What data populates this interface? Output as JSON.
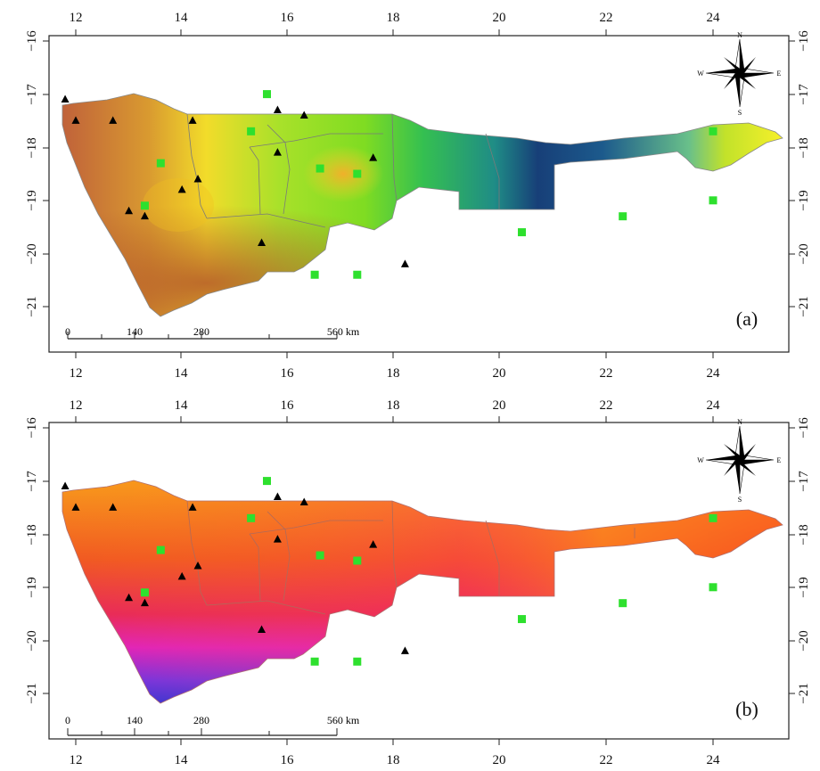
{
  "figure": {
    "panels": [
      {
        "id": "a",
        "label": "(a)",
        "x_ticks": [
          "12",
          "14",
          "16",
          "18",
          "20",
          "22",
          "24"
        ],
        "y_ticks": [
          "−16",
          "−17",
          "−18",
          "−19",
          "−20",
          "−21"
        ],
        "colormap": "yellow-green-blue"
      },
      {
        "id": "b",
        "label": "(b)",
        "x_ticks": [
          "12",
          "14",
          "16",
          "18",
          "20",
          "22",
          "24"
        ],
        "y_ticks": [
          "−16",
          "−17",
          "−18",
          "−19",
          "−20",
          "−21"
        ],
        "colormap": "orange-red-magenta-blue"
      }
    ],
    "compass": {
      "n": "N",
      "s": "S",
      "e": "E",
      "w": "W"
    },
    "scale_bar": {
      "labels": [
        "0",
        "140",
        "280",
        "560 km"
      ]
    }
  },
  "map_data": {
    "x_range": [
      11.6,
      25.4
    ],
    "y_range": [
      -21.9,
      -15.9
    ],
    "triangle_stations": [
      [
        11.8,
        -17.1
      ],
      [
        12.0,
        -17.5
      ],
      [
        12.7,
        -17.5
      ],
      [
        14.2,
        -17.5
      ],
      [
        15.8,
        -17.3
      ],
      [
        16.3,
        -17.4
      ],
      [
        15.8,
        -18.1
      ],
      [
        17.6,
        -18.2
      ],
      [
        14.3,
        -18.6
      ],
      [
        14.0,
        -18.8
      ],
      [
        13.0,
        -19.2
      ],
      [
        13.3,
        -19.3
      ],
      [
        15.5,
        -19.8
      ],
      [
        18.2,
        -20.2
      ]
    ],
    "square_stations": [
      [
        15.6,
        -17.0
      ],
      [
        15.3,
        -17.7
      ],
      [
        13.6,
        -18.3
      ],
      [
        16.6,
        -18.4
      ],
      [
        17.3,
        -18.5
      ],
      [
        13.3,
        -19.1
      ],
      [
        24.0,
        -17.7
      ],
      [
        24.0,
        -19.0
      ],
      [
        22.3,
        -19.3
      ],
      [
        20.4,
        -19.6
      ],
      [
        16.5,
        -20.4
      ],
      [
        17.3,
        -20.4
      ]
    ]
  }
}
